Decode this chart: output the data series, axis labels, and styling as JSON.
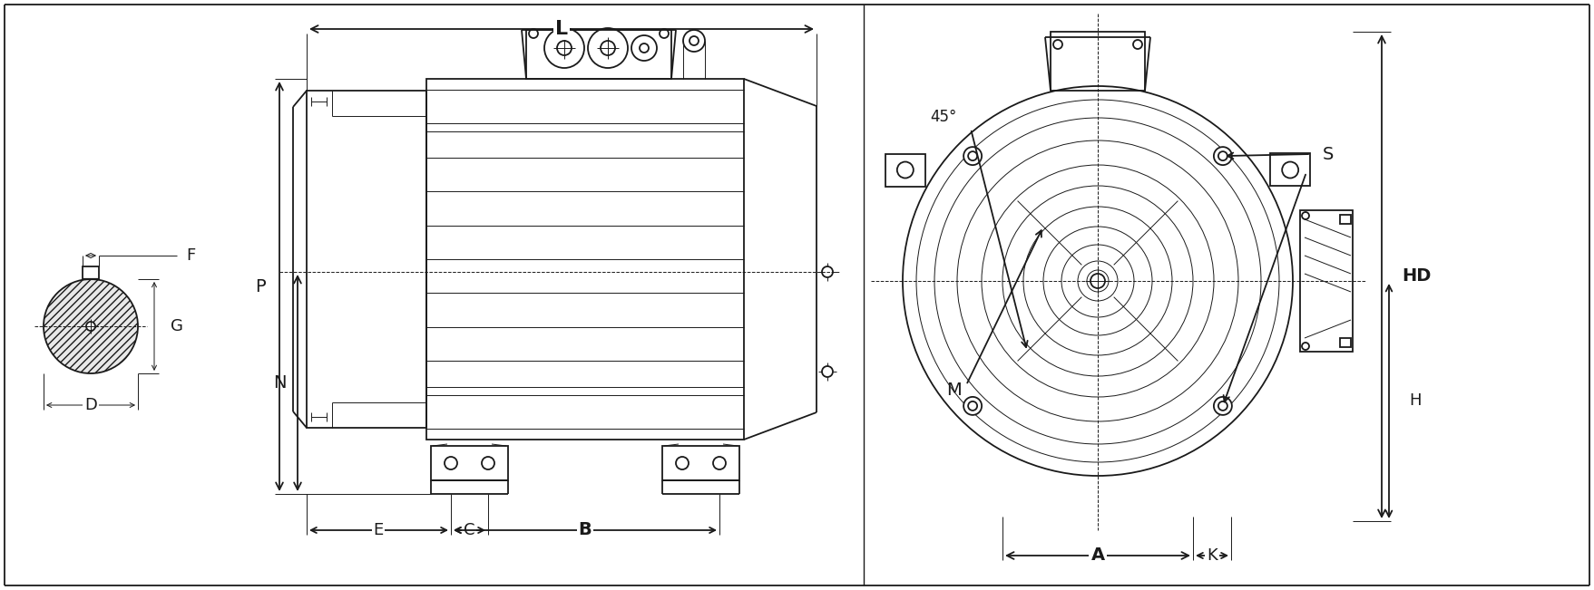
{
  "bg_color": "#ffffff",
  "lc": "#1a1a1a",
  "lw": 1.3,
  "tlw": 0.7,
  "fig_width": 17.57,
  "fig_height": 6.51,
  "labels": {
    "L": "L",
    "P": "P",
    "N": "N",
    "B": "B",
    "C": "C",
    "E": "E",
    "D": "D",
    "F": "F",
    "G": "G",
    "HD": "HD",
    "H": "H",
    "A": "A",
    "K": "K",
    "S": "S",
    "M": "M",
    "angle": "45°"
  }
}
